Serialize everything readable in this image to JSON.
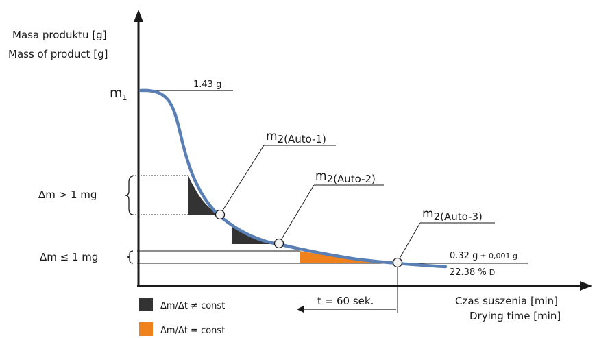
{
  "y_axis": {
    "label_pl": "Masa produktu [g]",
    "label_en": "Mass of product [g]"
  },
  "x_axis": {
    "label_pl": "Czas suszenia [min]",
    "label_en": "Drying time [min]"
  },
  "m1": {
    "base": "m",
    "sub": "1"
  },
  "initial_mass": "1.43 g",
  "points": [
    {
      "base": "m",
      "sub": "2(Auto-1)"
    },
    {
      "base": "m",
      "sub": "2(Auto-2)"
    },
    {
      "base": "m",
      "sub": "2(Auto-3)"
    }
  ],
  "delta_large": "Δm > 1 mg",
  "delta_small": "Δm ≤ 1 mg",
  "final": {
    "mass": "0.32 g",
    "tolerance": "± 0,001 g",
    "percent": "22.38 %",
    "percent_unit": "D"
  },
  "time_window": "t = 60 sek.",
  "legend": [
    {
      "label": "Δm/Δt ≠ const",
      "color": "#333333"
    },
    {
      "label": "Δm/Δt = const",
      "color": "#f0821e"
    }
  ],
  "colors": {
    "curve": "#5a7fb5",
    "axis": "#1a1a1a",
    "dark_fill": "#333333",
    "orange_fill": "#f0821e"
  }
}
